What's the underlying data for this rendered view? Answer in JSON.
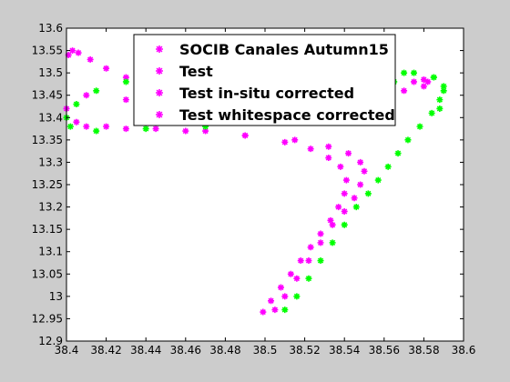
{
  "chart_data": {
    "type": "scatter",
    "title": "",
    "xlabel": "",
    "ylabel": "",
    "xlim": [
      38.4,
      38.6
    ],
    "ylim": [
      12.9,
      13.6
    ],
    "x_ticks": [
      38.4,
      38.42,
      38.44,
      38.46,
      38.48,
      38.5,
      38.52,
      38.54,
      38.56,
      38.58,
      38.6
    ],
    "x_tick_labels": [
      "38.4",
      "38.42",
      "38.44",
      "38.46",
      "38.48",
      "38.5",
      "38.52",
      "38.54",
      "38.56",
      "38.58",
      "38.6"
    ],
    "y_ticks": [
      12.9,
      12.95,
      13,
      13.05,
      13.1,
      13.15,
      13.2,
      13.25,
      13.3,
      13.35,
      13.4,
      13.45,
      13.5,
      13.55,
      13.6
    ],
    "y_tick_labels": [
      "12.9",
      "12.95",
      "13",
      "13.05",
      "13.1",
      "13.15",
      "13.2",
      "13.25",
      "13.3",
      "13.35",
      "13.4",
      "13.45",
      "13.5",
      "13.55",
      "13.6"
    ],
    "grid": false,
    "legend_position": "top-right",
    "series": [
      {
        "name": "SOCIB Canales Autumn15",
        "color": "#ff00ff",
        "marker": "*",
        "x": [
          38.499,
          38.503,
          38.508,
          38.513,
          38.518,
          38.523,
          38.528,
          38.533,
          38.537,
          38.54,
          38.541,
          38.538,
          38.532,
          38.523,
          38.51,
          38.49,
          38.47,
          38.445,
          38.42,
          38.405,
          38.4,
          38.41,
          38.43,
          38.46,
          38.49,
          38.52,
          38.55,
          38.57,
          38.58,
          38.582
        ],
        "y": [
          12.965,
          12.99,
          13.02,
          13.05,
          13.08,
          13.11,
          13.14,
          13.17,
          13.2,
          13.23,
          13.26,
          13.29,
          13.31,
          13.33,
          13.345,
          13.36,
          13.37,
          13.375,
          13.38,
          13.39,
          13.42,
          13.45,
          13.44,
          13.43,
          13.425,
          13.43,
          13.44,
          13.46,
          13.47,
          13.48
        ]
      },
      {
        "name": "Test",
        "color": "#ff00ff",
        "marker": "*",
        "x": [
          38.401,
          38.403,
          38.406,
          38.412,
          38.42,
          38.43,
          38.445,
          38.46,
          38.48,
          38.5,
          38.52,
          38.54,
          38.56,
          38.575,
          38.58
        ],
        "y": [
          13.54,
          13.55,
          13.545,
          13.53,
          13.51,
          13.49,
          13.47,
          13.46,
          13.455,
          13.45,
          13.455,
          13.46,
          13.47,
          13.48,
          13.485
        ]
      },
      {
        "name": "Test in-situ corrected",
        "color": "#ff00ff",
        "marker": "*",
        "x": [
          38.505,
          38.51,
          38.516,
          38.522,
          38.528,
          38.534,
          38.54,
          38.545,
          38.548,
          38.55,
          38.548,
          38.542,
          38.532,
          38.515,
          38.49,
          38.46,
          38.43,
          38.41
        ],
        "y": [
          12.97,
          13.0,
          13.04,
          13.08,
          13.12,
          13.16,
          13.19,
          13.22,
          13.25,
          13.28,
          13.3,
          13.32,
          13.335,
          13.35,
          13.36,
          13.37,
          13.375,
          13.38
        ]
      },
      {
        "name": "Test whitespace corrected",
        "color": "#00ff00",
        "marker": "*",
        "x": [
          38.51,
          38.516,
          38.522,
          38.528,
          38.534,
          38.54,
          38.546,
          38.552,
          38.557,
          38.562,
          38.567,
          38.572,
          38.578,
          38.584,
          38.588,
          38.59,
          38.585,
          38.575,
          38.565,
          38.55,
          38.53,
          38.5,
          38.47,
          38.44,
          38.415,
          38.402,
          38.4,
          38.405,
          38.415,
          38.43,
          38.45,
          38.47,
          38.49,
          38.51,
          38.53,
          38.55,
          38.57,
          38.585,
          38.59,
          38.588
        ],
        "y": [
          12.97,
          13.0,
          13.04,
          13.08,
          13.12,
          13.16,
          13.2,
          13.23,
          13.26,
          13.29,
          13.32,
          13.35,
          13.38,
          13.41,
          13.44,
          13.47,
          13.49,
          13.5,
          13.48,
          13.44,
          13.41,
          13.39,
          13.38,
          13.375,
          13.37,
          13.38,
          13.4,
          13.43,
          13.46,
          13.48,
          13.5,
          13.52,
          13.53,
          13.52,
          13.51,
          13.505,
          13.5,
          13.49,
          13.46,
          13.42
        ]
      }
    ]
  }
}
